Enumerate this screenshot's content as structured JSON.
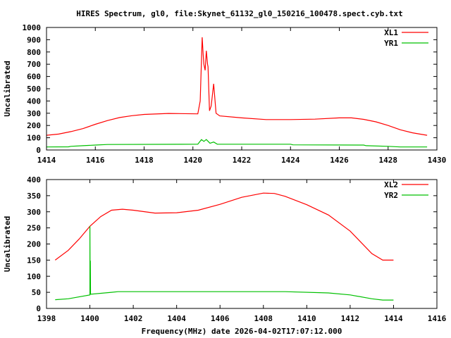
{
  "title": "HIRES Spectrum, gl0, file:Skynet_61132_gl0_150216_100478.spect.cyb.txt",
  "chart_data": [
    {
      "type": "line",
      "ylabel": "Uncalibrated",
      "xlabel": "",
      "xlim": [
        1414,
        1430
      ],
      "ylim": [
        0,
        1000
      ],
      "xticks": [
        1414,
        1416,
        1418,
        1420,
        1422,
        1424,
        1426,
        1428,
        1430
      ],
      "yticks": [
        0,
        100,
        200,
        300,
        400,
        500,
        600,
        700,
        800,
        900,
        1000
      ],
      "legend_position": "top-right",
      "series": [
        {
          "name": "XL1",
          "color": "#ff0000",
          "x": [
            1414,
            1414.5,
            1415,
            1415.5,
            1416,
            1416.5,
            1417,
            1417.5,
            1418,
            1419,
            1420.2,
            1420.3,
            1420.38,
            1420.42,
            1420.45,
            1420.5,
            1420.55,
            1420.6,
            1420.62,
            1420.68,
            1420.75,
            1420.85,
            1420.95,
            1421.1,
            1422,
            1423,
            1424,
            1425,
            1426,
            1426.5,
            1427,
            1427.5,
            1428,
            1428.5,
            1429,
            1429.6
          ],
          "y": [
            120,
            130,
            150,
            175,
            210,
            240,
            265,
            280,
            290,
            298,
            295,
            400,
            920,
            780,
            700,
            650,
            810,
            700,
            680,
            320,
            360,
            540,
            300,
            278,
            262,
            248,
            248,
            252,
            262,
            262,
            250,
            230,
            200,
            165,
            140,
            120
          ]
        },
        {
          "name": "YR1",
          "color": "#00c000",
          "x": [
            1414,
            1414.9,
            1415,
            1415.5,
            1416,
            1416.5,
            1420.2,
            1420.35,
            1420.45,
            1420.55,
            1420.7,
            1420.85,
            1421,
            1424,
            1424.1,
            1427,
            1427.1,
            1428,
            1428.5,
            1429.6
          ],
          "y": [
            25,
            26,
            30,
            35,
            40,
            45,
            47,
            85,
            70,
            85,
            55,
            65,
            47,
            47,
            42,
            40,
            35,
            30,
            25,
            25
          ]
        }
      ]
    },
    {
      "type": "line",
      "ylabel": "Uncalibrated",
      "xlabel": "Frequency(MHz) date 2026-04-02T17:07:12.000",
      "xlim": [
        1398,
        1416
      ],
      "ylim": [
        0,
        400
      ],
      "xticks": [
        1398,
        1400,
        1402,
        1404,
        1406,
        1408,
        1410,
        1412,
        1414,
        1416
      ],
      "yticks": [
        0,
        50,
        100,
        150,
        200,
        250,
        300,
        350,
        400
      ],
      "legend_position": "top-right",
      "series": [
        {
          "name": "XL2",
          "color": "#ff0000",
          "x": [
            1398.4,
            1399,
            1399.5,
            1400,
            1400.5,
            1401,
            1401.5,
            1402,
            1403,
            1404,
            1405,
            1406,
            1407,
            1408,
            1408.5,
            1409,
            1410,
            1411,
            1412,
            1412.5,
            1413,
            1413.5,
            1414
          ],
          "y": [
            150,
            180,
            215,
            255,
            285,
            305,
            308,
            305,
            296,
            297,
            305,
            323,
            345,
            358,
            357,
            348,
            322,
            290,
            240,
            205,
            170,
            150,
            150
          ]
        },
        {
          "name": "YR2",
          "color": "#00c000",
          "x": [
            1398.4,
            1399,
            1400,
            1400,
            1400.01,
            1400.02,
            1400.02,
            1400.03,
            1401,
            1401.3,
            1409,
            1411,
            1412,
            1413,
            1413.5,
            1414
          ],
          "y": [
            27,
            30,
            42,
            255,
            44,
            44,
            148,
            44,
            50,
            52,
            52,
            48,
            42,
            30,
            26,
            26
          ]
        }
      ]
    }
  ]
}
